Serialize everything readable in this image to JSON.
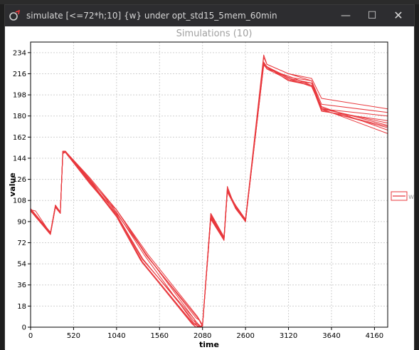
{
  "window": {
    "title": "simulate [<=72*h;10] {w} under opt_std15_5mem_60min",
    "minimize_glyph": "—",
    "maximize_glyph": "☐",
    "close_glyph": "✕",
    "icon": "uppaal-app-icon"
  },
  "chart_data": {
    "type": "line",
    "title": "Simulations (10)",
    "xlabel": "time",
    "ylabel": "value",
    "xlim": [
      0,
      4320
    ],
    "ylim": [
      0,
      243
    ],
    "x_ticks": [
      "0",
      "520",
      "1040",
      "1560",
      "2080",
      "2600",
      "3120",
      "3640",
      "4160"
    ],
    "y_ticks": [
      "0",
      "18",
      "36",
      "54",
      "72",
      "90",
      "108",
      "126",
      "144",
      "162",
      "180",
      "198",
      "216",
      "234"
    ],
    "grid": true,
    "legend": {
      "position": "right",
      "entries": [
        "w"
      ]
    },
    "series_color": "#e8383d",
    "series": [
      {
        "x": [
          0,
          60,
          240,
          300,
          360,
          390,
          420,
          720,
          1040,
          1350,
          1980,
          2000,
          2040,
          2060,
          2080,
          2180,
          2340,
          2380,
          2480,
          2600,
          2820,
          2860,
          3120,
          3400,
          3520,
          4320
        ],
        "y": [
          100,
          99,
          80,
          103,
          98,
          148,
          150,
          124,
          95,
          58,
          7,
          3,
          2,
          0,
          1,
          92,
          76,
          118,
          102,
          91,
          225,
          222,
          212,
          208,
          186,
          165
        ]
      },
      {
        "x": [
          0,
          240,
          300,
          360,
          390,
          420,
          720,
          1040,
          1400,
          2000,
          2060,
          2080,
          2180,
          2340,
          2380,
          2480,
          2600,
          2820,
          2860,
          3120,
          3400,
          3520,
          4320
        ],
        "y": [
          101,
          80,
          104,
          98,
          150,
          150,
          125,
          100,
          62,
          5,
          0,
          2,
          94,
          75,
          116,
          104,
          92,
          226,
          222,
          210,
          208,
          188,
          168
        ]
      },
      {
        "x": [
          0,
          240,
          300,
          360,
          390,
          420,
          720,
          1040,
          1350,
          1960,
          2000,
          2040,
          2060,
          2080,
          2180,
          2340,
          2380,
          2480,
          2600,
          2820,
          2860,
          3120,
          3400,
          3520,
          4320
        ],
        "y": [
          99,
          79,
          102,
          97,
          148,
          149,
          122,
          96,
          55,
          3,
          0,
          1,
          0,
          2,
          92,
          74,
          116,
          103,
          90,
          224,
          220,
          214,
          206,
          185,
          170
        ]
      },
      {
        "x": [
          0,
          240,
          300,
          360,
          390,
          420,
          720,
          1040,
          1420,
          2000,
          2040,
          2060,
          2080,
          2180,
          2340,
          2380,
          2480,
          2600,
          2820,
          2860,
          3120,
          3400,
          3520,
          4320
        ],
        "y": [
          100,
          80,
          103,
          98,
          149,
          149,
          124,
          97,
          60,
          8,
          6,
          3,
          1,
          96,
          76,
          120,
          101,
          90,
          230,
          224,
          216,
          210,
          190,
          183
        ]
      },
      {
        "x": [
          0,
          240,
          300,
          360,
          390,
          420,
          720,
          1040,
          1380,
          1970,
          2040,
          2080,
          2180,
          2340,
          2380,
          2480,
          2600,
          2820,
          2860,
          3120,
          3400,
          3520,
          4320
        ],
        "y": [
          101,
          81,
          104,
          98,
          150,
          150,
          126,
          98,
          61,
          4,
          0,
          2,
          95,
          76,
          117,
          102,
          91,
          225,
          222,
          213,
          210,
          187,
          172
        ]
      },
      {
        "x": [
          0,
          240,
          300,
          360,
          390,
          420,
          720,
          1040,
          1330,
          1950,
          2000,
          2040,
          2080,
          2180,
          2340,
          2380,
          2480,
          2600,
          2820,
          2860,
          3120,
          3400,
          3520,
          4320
        ],
        "y": [
          100,
          80,
          102,
          97,
          149,
          150,
          123,
          94,
          57,
          3,
          0,
          0,
          1,
          93,
          74,
          115,
          102,
          90,
          223,
          221,
          212,
          205,
          186,
          174
        ]
      },
      {
        "x": [
          0,
          240,
          300,
          360,
          390,
          420,
          720,
          880,
          1040,
          1420,
          2020,
          2080,
          2180,
          2340,
          2380,
          2480,
          2600,
          2820,
          2860,
          3120,
          3400,
          3520,
          4320
        ],
        "y": [
          100,
          80,
          103,
          98,
          150,
          150,
          125,
          110,
          100,
          62,
          9,
          2,
          97,
          77,
          118,
          103,
          92,
          232,
          224,
          216,
          212,
          195,
          186
        ]
      },
      {
        "x": [
          0,
          240,
          300,
          360,
          390,
          420,
          720,
          1040,
          1360,
          1980,
          2040,
          2080,
          2180,
          2340,
          2380,
          2480,
          2600,
          2820,
          2860,
          3120,
          3400,
          3520,
          4320
        ],
        "y": [
          100,
          80,
          103,
          98,
          148,
          149,
          122,
          96,
          58,
          5,
          1,
          1,
          94,
          75,
          116,
          102,
          90,
          224,
          220,
          211,
          206,
          184,
          176
        ]
      },
      {
        "x": [
          0,
          240,
          300,
          360,
          390,
          420,
          720,
          1040,
          1400,
          2020,
          2080,
          2180,
          2340,
          2380,
          2480,
          2600,
          2820,
          2860,
          3120,
          3400,
          3520,
          4320
        ],
        "y": [
          101,
          80,
          104,
          98,
          150,
          150,
          127,
          100,
          61,
          8,
          2,
          96,
          76,
          117,
          103,
          92,
          225,
          222,
          210,
          206,
          186,
          180
        ]
      },
      {
        "x": [
          0,
          240,
          300,
          360,
          390,
          420,
          720,
          1040,
          1350,
          1970,
          2040,
          2080,
          2180,
          2340,
          2380,
          2480,
          2600,
          2820,
          2860,
          3120,
          3400,
          3520,
          4320
        ],
        "y": [
          100,
          79,
          103,
          97,
          148,
          150,
          123,
          95,
          56,
          3,
          0,
          2,
          93,
          75,
          116,
          101,
          91,
          224,
          221,
          212,
          208,
          185,
          171
        ]
      }
    ]
  }
}
